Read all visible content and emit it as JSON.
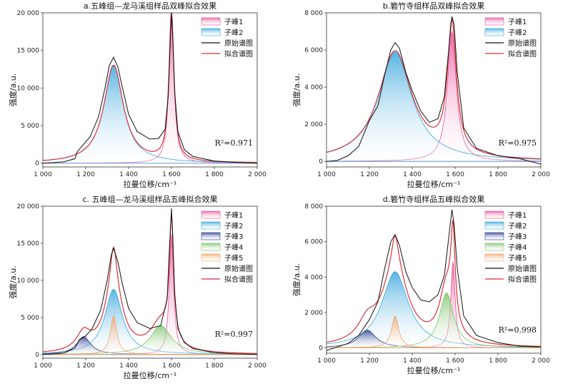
{
  "chart_data": [
    {
      "type": "line",
      "title": "a.五峰组—龙马溪组样品双峰拟合效果",
      "xlabel": "拉曼位移/cm⁻¹",
      "ylabel": "强度/a.u.",
      "xlim": [
        1000,
        2000
      ],
      "ylim": [
        -500,
        20000
      ],
      "xticks": [
        1000,
        1200,
        1400,
        1600,
        1800,
        2000
      ],
      "xtick_labels": [
        "1 000",
        "1 200",
        "1 400",
        "1 600",
        "1 800",
        "2 000"
      ],
      "yticks": [
        0,
        5000,
        10000,
        15000,
        20000
      ],
      "ytick_labels": [
        "0",
        "5 000",
        "10 000",
        "15 000",
        "20 000"
      ],
      "r2": "R²=0.971",
      "legend": [
        "子峰1",
        "子峰2",
        "原始谱图",
        "拟合谱图"
      ],
      "peaks": [
        {
          "name": "子峰1",
          "center": 1600,
          "height": 19800,
          "hwhm": 14,
          "color": "#e8559a"
        },
        {
          "name": "子峰2",
          "center": 1330,
          "height": 13000,
          "hwhm": 55,
          "color": "#3aa6dd"
        }
      ],
      "raw": {
        "name": "原始谱图",
        "points": [
          [
            1000,
            0
          ],
          [
            1050,
            80
          ],
          [
            1100,
            200
          ],
          [
            1150,
            600
          ],
          [
            1160,
            1500
          ],
          [
            1180,
            2200
          ],
          [
            1220,
            3500
          ],
          [
            1260,
            6200
          ],
          [
            1290,
            10000
          ],
          [
            1310,
            13000
          ],
          [
            1330,
            14100
          ],
          [
            1350,
            12800
          ],
          [
            1370,
            10200
          ],
          [
            1400,
            6500
          ],
          [
            1440,
            4200
          ],
          [
            1500,
            3200
          ],
          [
            1540,
            3300
          ],
          [
            1570,
            4500
          ],
          [
            1585,
            9000
          ],
          [
            1595,
            16500
          ],
          [
            1600,
            20000
          ],
          [
            1605,
            17500
          ],
          [
            1615,
            9500
          ],
          [
            1630,
            4200
          ],
          [
            1660,
            1800
          ],
          [
            1700,
            900
          ],
          [
            1800,
            300
          ],
          [
            1900,
            100
          ],
          [
            2000,
            0
          ]
        ]
      },
      "fit": {
        "name": "拟合谱图",
        "offset": 0
      }
    },
    {
      "type": "line",
      "title": "b.箬竹寺组样品双峰拟合效果",
      "xlabel": "拉曼位移/cm⁻¹",
      "ylabel": "强度/a.u.",
      "xlim": [
        1000,
        2000
      ],
      "ylim": [
        -300,
        8000
      ],
      "xticks": [
        1000,
        1200,
        1400,
        1600,
        1800,
        2000
      ],
      "xtick_labels": [
        "1 000",
        "1 200",
        "1 400",
        "1 600",
        "1 800",
        "2 000"
      ],
      "yticks": [
        0,
        2000,
        4000,
        6000,
        8000
      ],
      "ytick_labels": [
        "0",
        "2 000",
        "4 000",
        "6 000",
        "8 000"
      ],
      "r2": "R²=0.975",
      "legend": [
        "子峰1",
        "子峰2",
        "原始谱图",
        "拟合谱图"
      ],
      "peaks": [
        {
          "name": "子峰1",
          "center": 1585,
          "height": 7000,
          "hwhm": 25,
          "color": "#e8559a"
        },
        {
          "name": "子峰2",
          "center": 1320,
          "height": 5900,
          "hwhm": 95,
          "color": "#3aa6dd"
        }
      ],
      "raw": {
        "name": "原始谱图",
        "points": [
          [
            1000,
            0
          ],
          [
            1050,
            50
          ],
          [
            1100,
            300
          ],
          [
            1150,
            800
          ],
          [
            1200,
            2200
          ],
          [
            1240,
            3000
          ],
          [
            1270,
            4600
          ],
          [
            1300,
            6000
          ],
          [
            1320,
            6400
          ],
          [
            1340,
            6100
          ],
          [
            1370,
            4800
          ],
          [
            1400,
            3800
          ],
          [
            1440,
            2700
          ],
          [
            1480,
            2100
          ],
          [
            1520,
            2300
          ],
          [
            1550,
            3500
          ],
          [
            1570,
            6000
          ],
          [
            1585,
            7800
          ],
          [
            1595,
            7400
          ],
          [
            1610,
            4800
          ],
          [
            1640,
            1800
          ],
          [
            1700,
            700
          ],
          [
            1800,
            300
          ],
          [
            1900,
            150
          ],
          [
            2000,
            -150
          ]
        ]
      },
      "fit": {
        "name": "拟合谱图",
        "offset": 0
      }
    },
    {
      "type": "line",
      "title": "c. 五峰组—龙马溪组样品五峰拟合效果",
      "xlabel": "拉曼位移/cm⁻¹",
      "ylabel": "强度/a.u.",
      "xlim": [
        1000,
        2000
      ],
      "ylim": [
        -500,
        20000
      ],
      "xticks": [
        1000,
        1200,
        1400,
        1600,
        1800,
        2000
      ],
      "xtick_labels": [
        "1 000",
        "1 200",
        "1 400",
        "1 600",
        "1 800",
        "2 000"
      ],
      "yticks": [
        0,
        5000,
        10000,
        15000,
        20000
      ],
      "ytick_labels": [
        "0",
        "5 000",
        "10 000",
        "15 000",
        "20 000"
      ],
      "r2": "R²=0.997",
      "legend": [
        "子峰1",
        "子峰2",
        "子峰3",
        "子峰4",
        "子峰5",
        "原始谱图",
        "拟合谱图"
      ],
      "peaks": [
        {
          "name": "子峰1",
          "center": 1600,
          "height": 16200,
          "hwhm": 12,
          "color": "#e8559a"
        },
        {
          "name": "子峰2",
          "center": 1330,
          "height": 8800,
          "hwhm": 50,
          "color": "#3aa6dd"
        },
        {
          "name": "子峰3",
          "center": 1190,
          "height": 2400,
          "hwhm": 40,
          "color": "#2b3d8f"
        },
        {
          "name": "子峰4",
          "center": 1550,
          "height": 3900,
          "hwhm": 60,
          "color": "#7fc46e"
        },
        {
          "name": "子峰5",
          "center": 1330,
          "height": 5200,
          "hwhm": 18,
          "color": "#f5a56a"
        }
      ],
      "raw": {
        "name": "原始谱图",
        "points": [
          [
            1000,
            0
          ],
          [
            1050,
            80
          ],
          [
            1100,
            200
          ],
          [
            1150,
            900
          ],
          [
            1170,
            2000
          ],
          [
            1200,
            2500
          ],
          [
            1230,
            3500
          ],
          [
            1270,
            6000
          ],
          [
            1300,
            10000
          ],
          [
            1320,
            13500
          ],
          [
            1330,
            14300
          ],
          [
            1350,
            12500
          ],
          [
            1370,
            9600
          ],
          [
            1400,
            6200
          ],
          [
            1440,
            4300
          ],
          [
            1500,
            3500
          ],
          [
            1550,
            3900
          ],
          [
            1580,
            7500
          ],
          [
            1590,
            14000
          ],
          [
            1600,
            19700
          ],
          [
            1606,
            16000
          ],
          [
            1615,
            8000
          ],
          [
            1630,
            3500
          ],
          [
            1660,
            1600
          ],
          [
            1700,
            800
          ],
          [
            1800,
            250
          ],
          [
            1900,
            80
          ],
          [
            2000,
            0
          ]
        ]
      },
      "fit": {
        "name": "拟合谱图",
        "offset": 0
      }
    },
    {
      "type": "line",
      "title": "d.箬竹寺组样品五峰拟合效果",
      "xlabel": "拉曼位移/cm⁻¹",
      "ylabel": "强度/a.u.",
      "xlim": [
        1000,
        2000
      ],
      "ylim": [
        -300,
        8000
      ],
      "xticks": [
        1000,
        1200,
        1400,
        1600,
        1800,
        2000
      ],
      "xtick_labels": [
        "1 000",
        "1 200",
        "1 400",
        "1 600",
        "1 800",
        "2 000"
      ],
      "yticks": [
        0,
        2000,
        4000,
        6000,
        8000
      ],
      "ytick_labels": [
        "0",
        "2 000",
        "4 000",
        "6 000",
        "8 000"
      ],
      "r2": "R²=0.998",
      "legend": [
        "子峰1",
        "子峰2",
        "子峰3",
        "子峰4",
        "子峰5",
        "原始谱图",
        "拟合谱图"
      ],
      "peaks": [
        {
          "name": "子峰1",
          "center": 1590,
          "height": 4900,
          "hwhm": 12,
          "color": "#e8559a"
        },
        {
          "name": "子峰2",
          "center": 1320,
          "height": 4300,
          "hwhm": 75,
          "color": "#3aa6dd"
        },
        {
          "name": "子峰3",
          "center": 1190,
          "height": 1000,
          "hwhm": 50,
          "color": "#2b3d8f"
        },
        {
          "name": "子峰4",
          "center": 1560,
          "height": 3100,
          "hwhm": 40,
          "color": "#7fc46e"
        },
        {
          "name": "子峰5",
          "center": 1320,
          "height": 1800,
          "hwhm": 20,
          "color": "#f5a56a"
        }
      ],
      "raw": {
        "name": "原始谱图",
        "points": [
          [
            1000,
            -150
          ],
          [
            1050,
            50
          ],
          [
            1100,
            250
          ],
          [
            1150,
            700
          ],
          [
            1200,
            1600
          ],
          [
            1240,
            2600
          ],
          [
            1270,
            4400
          ],
          [
            1300,
            6000
          ],
          [
            1320,
            6400
          ],
          [
            1340,
            5800
          ],
          [
            1370,
            4300
          ],
          [
            1400,
            3400
          ],
          [
            1440,
            2700
          ],
          [
            1480,
            2600
          ],
          [
            1520,
            3000
          ],
          [
            1550,
            4100
          ],
          [
            1570,
            6200
          ],
          [
            1585,
            7800
          ],
          [
            1595,
            7000
          ],
          [
            1610,
            4500
          ],
          [
            1640,
            1800
          ],
          [
            1700,
            700
          ],
          [
            1800,
            300
          ],
          [
            1900,
            100
          ],
          [
            2000,
            50
          ]
        ]
      },
      "fit": {
        "name": "拟合谱图",
        "offset": 0
      }
    }
  ]
}
